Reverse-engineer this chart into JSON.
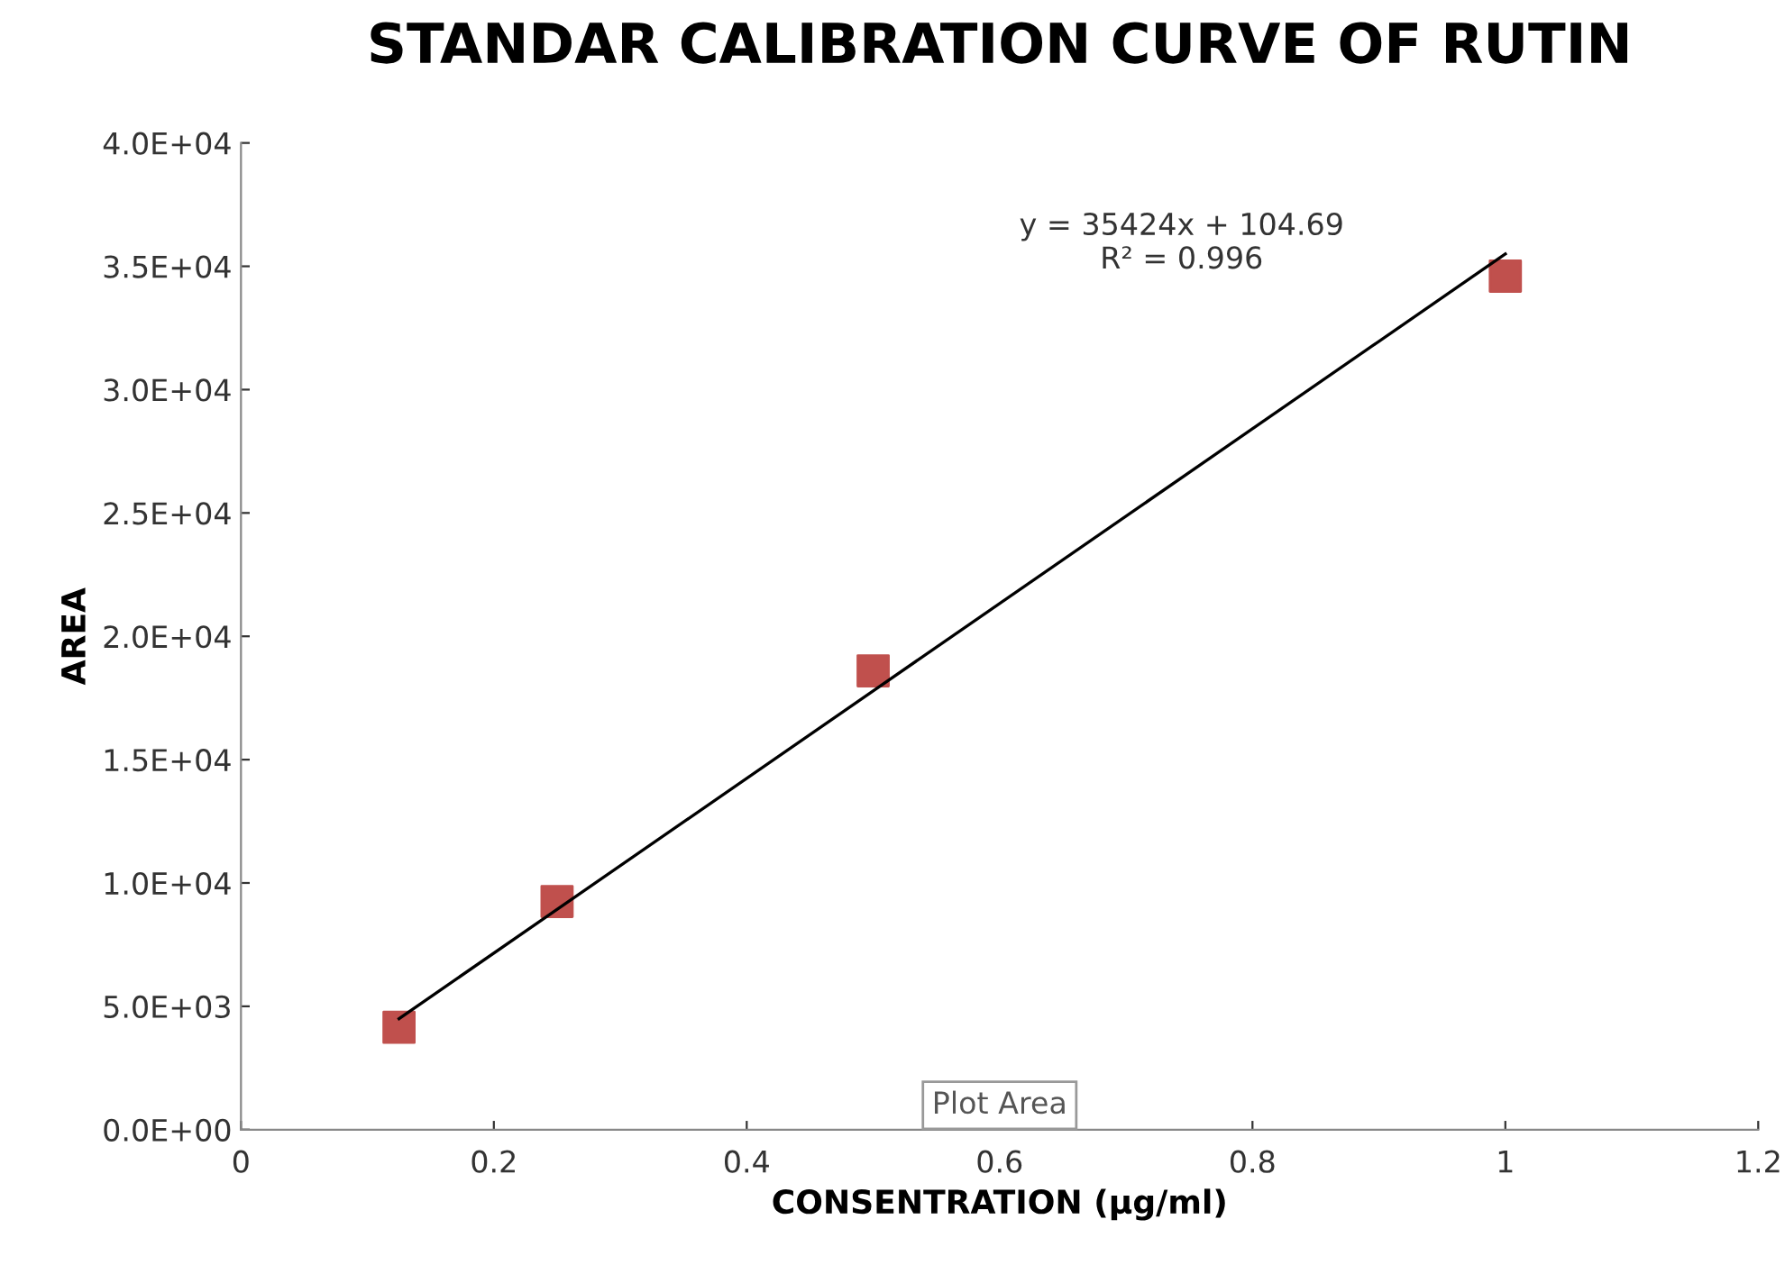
{
  "chart_data": {
    "type": "scatter",
    "title": "STANDAR CALIBRATION CURVE OF RUTIN",
    "xlabel": "CONSENTRATION (µg/ml)",
    "ylabel": "AREA",
    "x": [
      0.125,
      0.25,
      0.5,
      1
    ],
    "series": [
      {
        "color": "#c0504d",
        "marker": "square",
        "values": [
          4150,
          9250,
          18600,
          34600
        ]
      },
      {
        "type": "line",
        "color": "#000000",
        "marker": "none",
        "line_style": "solid",
        "x": [
          0.125,
          1
        ],
        "values": [
          4500,
          35500
        ]
      }
    ],
    "xlim": [
      0,
      1.2
    ],
    "xticks": [
      0,
      0.2,
      0.4,
      0.6,
      0.8,
      1,
      1.2
    ],
    "ylim": [
      0,
      40000
    ],
    "yticks": [
      {
        "value": 0,
        "label": "0.0E+00"
      },
      {
        "value": 5000,
        "label": "5.0E+03"
      },
      {
        "value": 10000,
        "label": "1.0E+04"
      },
      {
        "value": 15000,
        "label": "1.5E+04"
      },
      {
        "value": 20000,
        "label": "2.0E+04"
      },
      {
        "value": 25000,
        "label": "2.5E+04"
      },
      {
        "value": 30000,
        "label": "3.0E+04"
      },
      {
        "value": 35000,
        "label": "3.5E+04"
      },
      {
        "value": 40000,
        "label": "4.0E+04"
      }
    ],
    "grid": false,
    "legend": false,
    "annotations": [
      "y = 35424x + 104.69\nR² = 0.996",
      "Plot Area"
    ]
  }
}
